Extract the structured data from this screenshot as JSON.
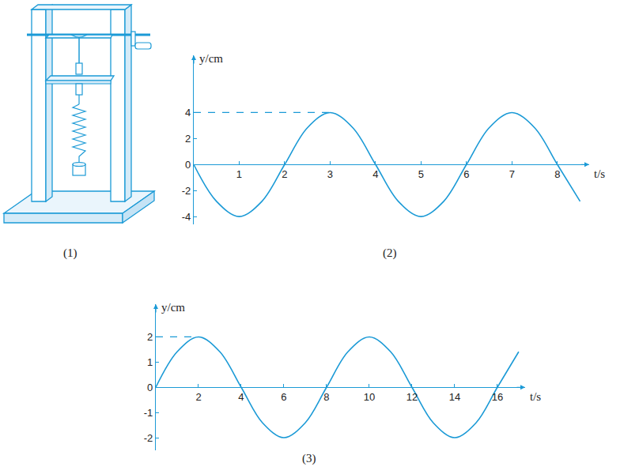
{
  "illustration": {
    "label": "(1)"
  },
  "chart_data": [
    {
      "type": "line",
      "subtitle": "(2)",
      "xlabel": "t/s",
      "ylabel": "y/cm",
      "color": "#1b9ad6",
      "grid": false,
      "x": [
        0,
        0.5,
        1,
        1.5,
        2,
        2.5,
        3,
        3.5,
        4,
        4.5,
        5,
        5.5,
        6,
        6.5,
        7,
        7.5,
        8,
        8.5
      ],
      "values": [
        0,
        -2.83,
        -4,
        -2.83,
        0,
        2.83,
        4,
        2.83,
        0,
        -2.83,
        -4,
        -2.83,
        0,
        2.83,
        4,
        2.83,
        0,
        -2.83
      ],
      "xlim": [
        0,
        8.7
      ],
      "ylim": [
        -4.6,
        8.4
      ],
      "xticks": [
        1,
        2,
        3,
        4,
        5,
        6,
        7,
        8
      ],
      "yticks": [
        -4,
        -2,
        0,
        2,
        4
      ]
    },
    {
      "type": "line",
      "subtitle": "(3)",
      "xlabel": "t/s",
      "ylabel": "y/cm",
      "color": "#1b9ad6",
      "grid": false,
      "x": [
        0,
        1,
        2,
        3,
        4,
        5,
        6,
        7,
        8,
        9,
        10,
        11,
        12,
        13,
        14,
        15,
        16,
        17
      ],
      "values": [
        0,
        1.41,
        2,
        1.41,
        0,
        -1.41,
        -2,
        -1.41,
        0,
        1.41,
        2,
        1.41,
        0,
        -1.41,
        -2,
        -1.41,
        0,
        1.41
      ],
      "xlim": [
        0,
        17.3
      ],
      "ylim": [
        -2.5,
        3.3
      ],
      "xticks": [
        2,
        4,
        6,
        8,
        10,
        12,
        14,
        16
      ],
      "yticks": [
        -2,
        -1,
        0,
        1,
        2
      ]
    }
  ]
}
